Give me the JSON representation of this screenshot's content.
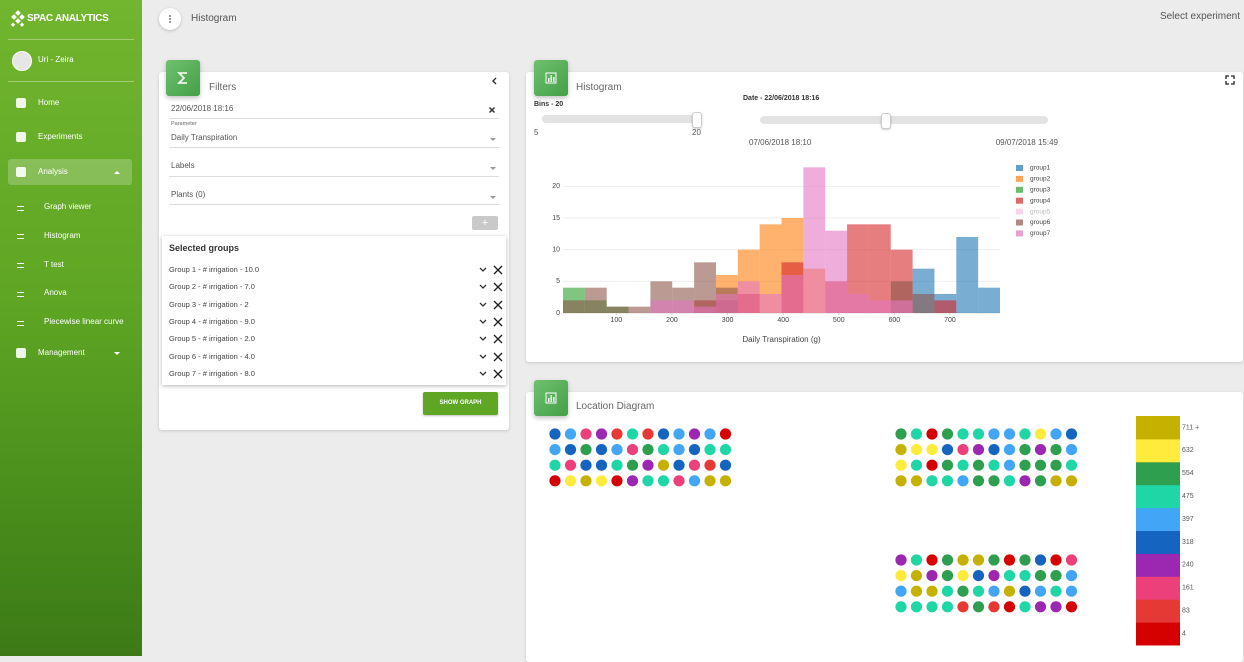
{
  "sidebar": {
    "logo": "SPAC ANALYTICS",
    "user": "Uri - Zeira",
    "menu": [
      "Home",
      "Experiments",
      "Analysis",
      "Management"
    ],
    "submenu": [
      "Graph viewer",
      "Histogram",
      "T test",
      "Anova",
      "Piecewise linear curve"
    ]
  },
  "header": {
    "title": "Histogram",
    "select": "Select experiment"
  },
  "filters": {
    "title": "Filters",
    "date": "22/06/2018 18:16",
    "parameter_label": "Parameter",
    "parameter": "Daily Transpiration",
    "labels": "Labels",
    "plants": "Plants (0)",
    "add_button": "+",
    "selected_title": "Selected groups",
    "groups": [
      "Group 1 - # irrigation - 10.0",
      "Group 2 - # irrigation - 7.0",
      "Group 3 - # irrigation - 2",
      "Group 4 - # irrigation - 9.0",
      "Group 5 - # irrigation - 2.0",
      "Group 6 - # irrigation - 4.0",
      "Group 7 - # irrigation - 8.0"
    ],
    "button": "SHOW GRAPH"
  },
  "histogram_card": {
    "title": "Histogram",
    "bins_label": "Bins - 20",
    "bins_min": 5,
    "bins_max": 20,
    "bins_value": 20,
    "date_label": "Date - 22/06/2018 18:16",
    "date_start": "07/06/2018 18:10",
    "date_end": "09/07/2018 15:49"
  },
  "chart_data": {
    "type": "histogram",
    "x_label": "Daily Transpiration (g)",
    "bins": [
      4,
      43.3,
      82.6,
      121.9,
      161.2,
      200.5,
      239.8,
      279.1,
      318.4,
      357.7,
      397,
      436.3,
      475.6,
      514.9,
      554.2,
      593.5,
      632.8,
      672.1,
      711.4,
      750.7,
      790
    ],
    "series": [
      {
        "name": "group1",
        "color": "#1f77b4",
        "visible": true,
        "values": [
          0,
          0,
          0,
          0,
          0,
          0,
          0,
          0,
          0,
          0,
          0,
          0,
          0,
          0,
          0,
          0,
          7,
          3,
          12,
          4
        ]
      },
      {
        "name": "group2",
        "color": "#ff7f0e",
        "visible": true,
        "values": [
          0,
          0,
          0,
          0,
          0,
          0,
          0,
          6,
          10,
          14,
          15,
          7,
          0,
          0,
          0,
          0,
          0,
          0,
          0,
          0
        ]
      },
      {
        "name": "group3",
        "color": "#2ca02c",
        "visible": true,
        "values": [
          4,
          2,
          1,
          0,
          0,
          0,
          0,
          0,
          0,
          0,
          0,
          0,
          0,
          0,
          0,
          0,
          0,
          0,
          0,
          0
        ]
      },
      {
        "name": "group4",
        "color": "#d62728",
        "visible": true,
        "values": [
          0,
          0,
          0,
          0,
          0,
          0,
          2,
          2,
          3,
          0,
          8,
          0,
          5,
          14,
          14,
          10,
          0,
          2,
          0,
          0
        ]
      },
      {
        "name": "group5",
        "color": "#e377c2",
        "visible": false
      },
      {
        "name": "group6",
        "color": "#8c564b",
        "visible": true,
        "values": [
          2,
          4,
          1,
          1,
          5,
          4,
          8,
          4,
          0,
          0,
          0,
          0,
          0,
          0,
          0,
          5,
          3,
          0,
          0,
          0
        ]
      },
      {
        "name": "group7",
        "color": "#e377c2",
        "visible": true,
        "values": [
          0,
          0,
          0,
          0,
          2,
          2,
          1,
          3,
          5,
          3,
          6,
          23,
          13,
          3,
          2,
          2,
          0,
          0,
          0,
          0
        ]
      }
    ],
    "xlim": [
      4,
      790
    ],
    "ylim": [
      0,
      24
    ],
    "xticks": [
      100,
      200,
      300,
      400,
      500,
      600,
      700
    ],
    "yticks": [
      0,
      5,
      10,
      15,
      20
    ],
    "grid": true
  },
  "location": {
    "title": "Location Diagram",
    "scale": [
      {
        "value": 4,
        "color": "#d50000"
      },
      {
        "value": 83,
        "color": "#e53935"
      },
      {
        "value": 161,
        "color": "#ec407a"
      },
      {
        "value": 240,
        "color": "#9c27b0"
      },
      {
        "value": 318,
        "color": "#1565c0"
      },
      {
        "value": 397,
        "color": "#42a5f5"
      },
      {
        "value": 475,
        "color": "#1fd6a6"
      },
      {
        "value": 554,
        "color": "#2e9e4f"
      },
      {
        "value": 632,
        "color": "#ffeb3b"
      },
      {
        "value": {
          "value": 711,
          "label": "711 +"
        },
        "color": "#c6b000"
      }
    ],
    "plots": [
      [
        [
          318,
          397,
          161,
          240,
          83,
          475,
          83,
          318,
          397,
          240,
          397,
          4
        ],
        [
          397,
          318,
          554,
          318,
          397,
          161,
          554,
          475,
          397,
          318,
          475,
          475
        ],
        [
          475,
          161,
          318,
          318,
          475,
          554,
          240,
          711,
          318,
          161,
          83,
          318
        ],
        [
          4,
          632,
          711,
          632,
          4,
          240,
          475,
          475,
          161,
          397,
          711,
          711
        ]
      ],
      [
        [
          554,
          475,
          4,
          554,
          475,
          475,
          397,
          397,
          475,
          632,
          397,
          318
        ],
        [
          711,
          632,
          632,
          318,
          161,
          240,
          318,
          397,
          554,
          240,
          554,
          397
        ],
        [
          632,
          475,
          4,
          554,
          475,
          554,
          475,
          397,
          554,
          554,
          554,
          475
        ],
        [
          711,
          711,
          475,
          475,
          397,
          554,
          554,
          475,
          240,
          554,
          711,
          711
        ]
      ],
      [
        [
          240,
          475,
          4,
          554,
          711,
          711,
          554,
          4,
          554,
          318,
          4,
          161
        ],
        [
          632,
          711,
          240,
          554,
          632,
          318,
          240,
          475,
          475,
          554,
          554,
          397
        ],
        [
          397,
          711,
          711,
          475,
          554,
          475,
          397,
          711,
          318,
          397,
          475,
          397
        ],
        [
          475,
          475,
          475,
          475,
          83,
          554,
          83,
          4,
          475,
          240,
          240,
          4
        ]
      ]
    ]
  }
}
